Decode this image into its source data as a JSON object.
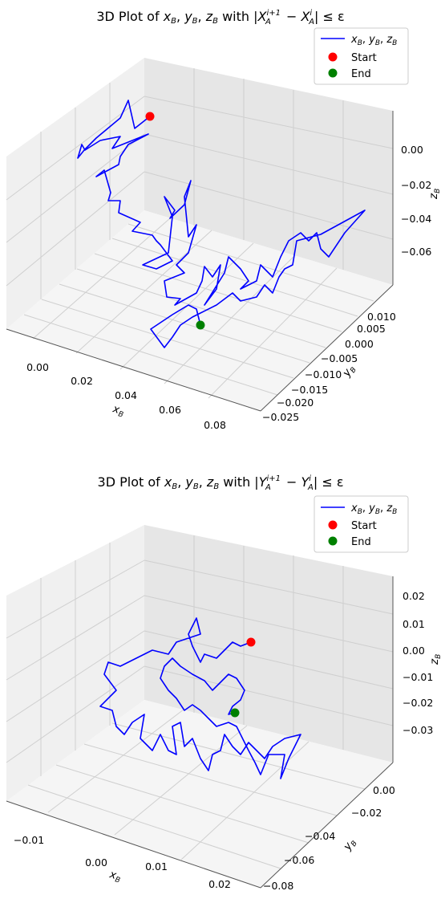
{
  "chart_data": [
    {
      "type": "line3d",
      "title": "3D Plot of x_B, y_B, z_B with |X_A^{i+1} − X_A^i| ≤ ε",
      "xlabel": "x_B",
      "ylabel": "y_B",
      "zlabel": "z_B",
      "xlim": [
        -0.01,
        0.09
      ],
      "ylim": [
        -0.027,
        0.015
      ],
      "zlim": [
        -0.08,
        0.015
      ],
      "x_ticks": [
        "0.00",
        "0.02",
        "0.04",
        "0.06",
        "0.08"
      ],
      "y_ticks": [
        "0.010",
        "0.005",
        "0.000",
        "−0.005",
        "−0.010",
        "−0.015",
        "−0.020",
        "−0.025"
      ],
      "z_ticks": [
        "0.00",
        "−0.02",
        "−0.04",
        "−0.06"
      ],
      "legend": {
        "placement": "top-right",
        "entries": [
          "x_B, y_B, z_B",
          "Start",
          "End"
        ]
      },
      "series": [
        {
          "name": "x_B, y_B, z_B",
          "color": "#0000ff",
          "start": [
            0.002,
            0.004,
            -0.002
          ],
          "end": [
            0.064,
            -0.012,
            -0.075
          ]
        }
      ],
      "start_point": {
        "label": "Start",
        "color": "#ff0000"
      },
      "end_point": {
        "label": "End",
        "color": "#008000"
      },
      "grid": true
    },
    {
      "type": "line3d",
      "title": "3D Plot of x_B, y_B, z_B with |Y_A^{i+1} − Y_A^i| ≤ ε",
      "xlabel": "x_B",
      "ylabel": "y_B",
      "zlabel": "z_B",
      "xlim": [
        -0.015,
        0.03
      ],
      "ylim": [
        -0.085,
        0.015
      ],
      "zlim": [
        -0.038,
        0.025
      ],
      "x_ticks": [
        "−0.01",
        "0.00",
        "0.01",
        "0.02"
      ],
      "y_ticks": [
        "0.00",
        "−0.02",
        "−0.04",
        "−0.06",
        "−0.08"
      ],
      "z_ticks": [
        "0.02",
        "0.01",
        "0.00",
        "−0.01",
        "−0.02",
        "−0.03"
      ],
      "legend": {
        "placement": "top-right",
        "entries": [
          "x_B, y_B, z_B",
          "Start",
          "End"
        ]
      },
      "series": [
        {
          "name": "x_B, y_B, z_B",
          "color": "#0000ff",
          "start": [
            0.013,
            -0.03,
            0.004
          ],
          "end": [
            0.006,
            -0.045,
            -0.021
          ]
        }
      ],
      "start_point": {
        "label": "Start",
        "color": "#ff0000"
      },
      "end_point": {
        "label": "End",
        "color": "#008000"
      },
      "grid": true
    }
  ]
}
